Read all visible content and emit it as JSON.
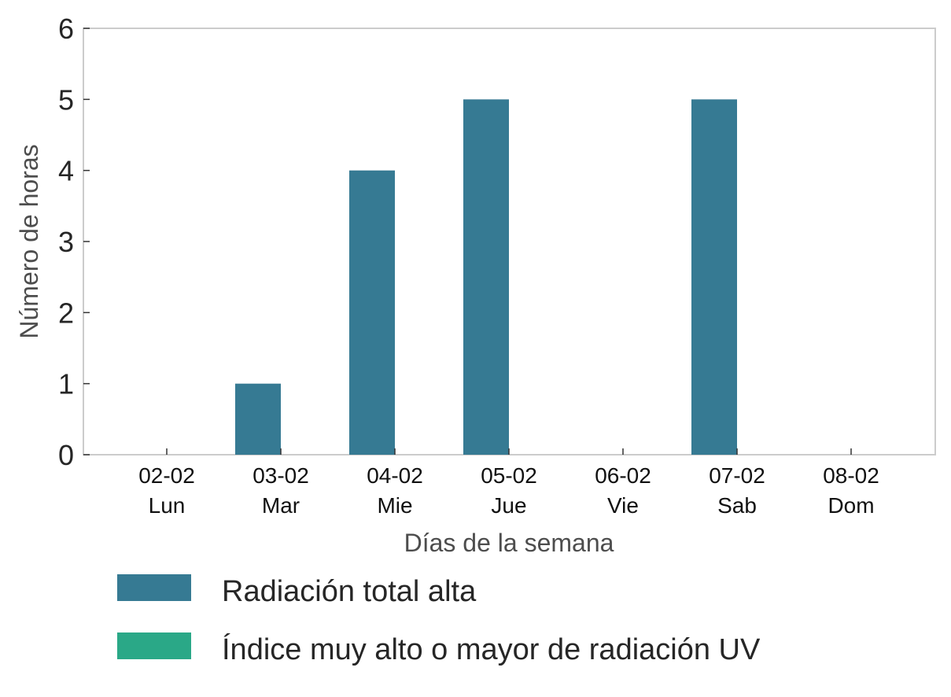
{
  "chart_data": {
    "type": "bar",
    "categories": [
      [
        "02-02",
        "Lun"
      ],
      [
        "03-02",
        "Mar"
      ],
      [
        "04-02",
        "Mie"
      ],
      [
        "05-02",
        "Jue"
      ],
      [
        "06-02",
        "Vie"
      ],
      [
        "07-02",
        "Sab"
      ],
      [
        "08-02",
        "Dom"
      ]
    ],
    "series": [
      {
        "name": "Radiación total alta",
        "color": "#367a93",
        "values": [
          0,
          1,
          4,
          5,
          0,
          5,
          0
        ]
      },
      {
        "name": "Índice muy alto o mayor de radiación UV",
        "color": "#2aa887",
        "values": [
          0,
          0,
          0,
          0,
          0,
          0,
          0
        ]
      }
    ],
    "xlabel": "Días de la semana",
    "ylabel": "Número de horas",
    "ylim": [
      0,
      6
    ],
    "yticks": [
      0,
      1,
      2,
      3,
      4,
      5,
      6
    ],
    "grid": false,
    "legend": "bottom"
  }
}
